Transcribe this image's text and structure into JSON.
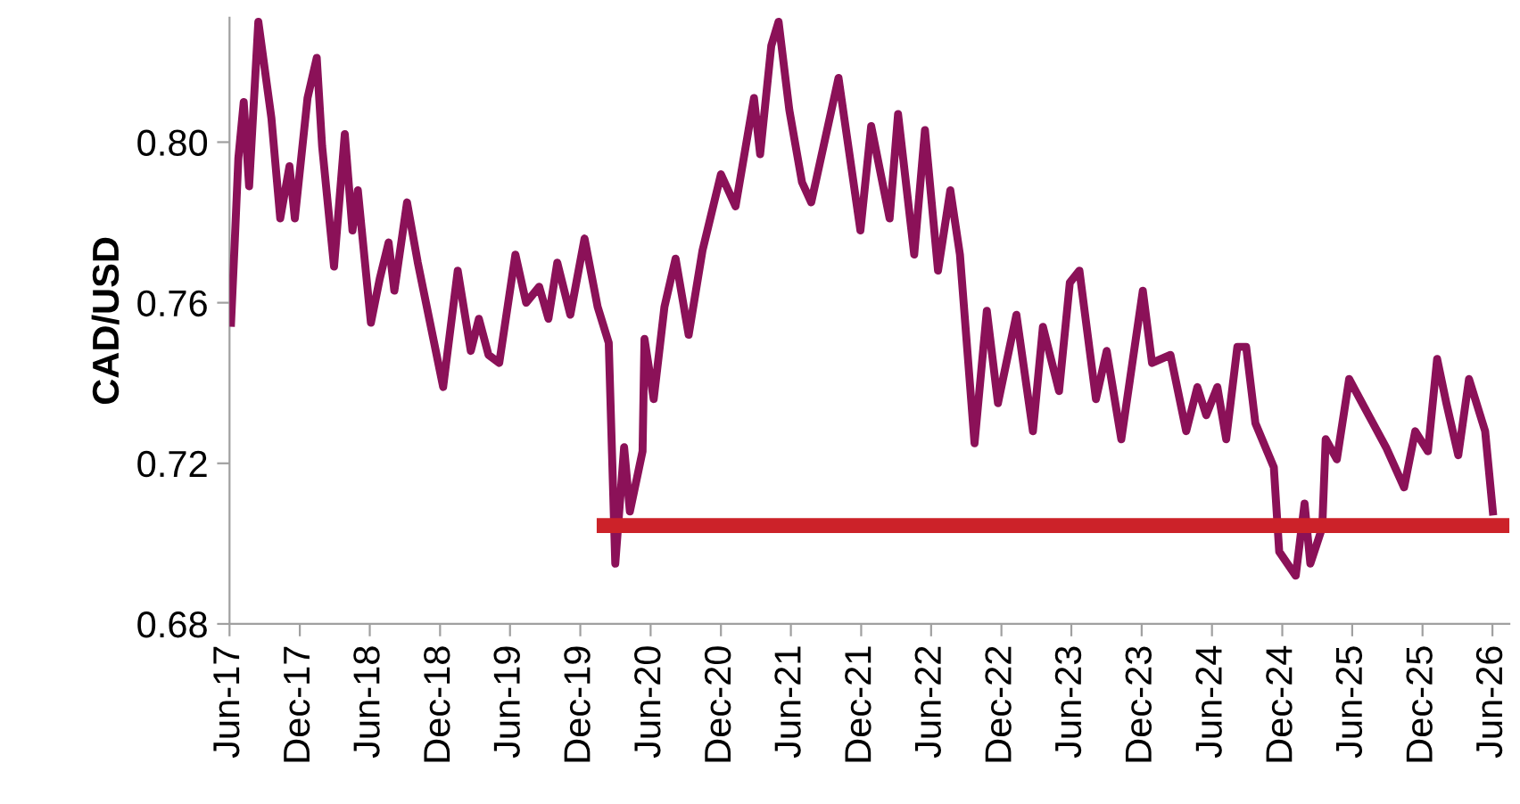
{
  "chart_data": {
    "type": "line",
    "ylabel": "CAD/USD",
    "xlim": [
      "2017-06-01",
      "2026-07-15"
    ],
    "ylim": [
      0.68,
      0.831
    ],
    "yticks": [
      {
        "value": 0.68,
        "label": "0.68"
      },
      {
        "value": 0.72,
        "label": "0.72"
      },
      {
        "value": 0.76,
        "label": "0.76"
      },
      {
        "value": 0.8,
        "label": "0.80"
      }
    ],
    "xticks": [
      {
        "value": "2017-06-01",
        "label": "Jun-17"
      },
      {
        "value": "2017-12-01",
        "label": "Dec-17"
      },
      {
        "value": "2018-06-01",
        "label": "Jun-18"
      },
      {
        "value": "2018-12-01",
        "label": "Dec-18"
      },
      {
        "value": "2019-06-01",
        "label": "Jun-19"
      },
      {
        "value": "2019-12-01",
        "label": "Dec-19"
      },
      {
        "value": "2020-06-01",
        "label": "Jun-20"
      },
      {
        "value": "2020-12-01",
        "label": "Dec-20"
      },
      {
        "value": "2021-06-01",
        "label": "Jun-21"
      },
      {
        "value": "2021-12-01",
        "label": "Dec-21"
      },
      {
        "value": "2022-06-01",
        "label": "Jun-22"
      },
      {
        "value": "2022-12-01",
        "label": "Dec-22"
      },
      {
        "value": "2023-06-01",
        "label": "Jun-23"
      },
      {
        "value": "2023-12-01",
        "label": "Dec-23"
      },
      {
        "value": "2024-06-01",
        "label": "Jun-24"
      },
      {
        "value": "2024-12-01",
        "label": "Dec-24"
      },
      {
        "value": "2025-06-01",
        "label": "Jun-25"
      },
      {
        "value": "2025-12-01",
        "label": "Dec-25"
      },
      {
        "value": "2026-06-01",
        "label": "Jun-26"
      }
    ],
    "grid": false,
    "marker": "none",
    "line_style": "solid",
    "series": [
      {
        "color": "#8b1158",
        "x": [
          "2017-06-05",
          "2017-06-15",
          "2017-06-24",
          "2017-07-08",
          "2017-07-22",
          "2017-08-15",
          "2017-09-18",
          "2017-10-11",
          "2017-11-04",
          "2017-11-18",
          "2017-12-21",
          "2018-01-14",
          "2018-01-28",
          "2018-02-28",
          "2018-03-28",
          "2018-04-17",
          "2018-05-01",
          "2018-06-04",
          "2018-06-27",
          "2018-07-20",
          "2018-08-04",
          "2018-09-06",
          "2018-10-04",
          "2018-12-09",
          "2019-01-16",
          "2019-02-19",
          "2019-03-12",
          "2019-04-06",
          "2019-05-04",
          "2019-06-15",
          "2019-07-13",
          "2019-08-16",
          "2019-09-09",
          "2019-10-02",
          "2019-11-05",
          "2019-12-12",
          "2020-01-15",
          "2020-02-13",
          "2020-03-01",
          "2020-03-24",
          "2020-04-08",
          "2020-05-11",
          "2020-05-16",
          "2020-06-09",
          "2020-07-07",
          "2020-08-05",
          "2020-09-08",
          "2020-10-14",
          "2020-12-01",
          "2021-01-08",
          "2021-02-25",
          "2021-03-13",
          "2021-04-11",
          "2021-04-30",
          "2021-05-28",
          "2021-06-30",
          "2021-07-24",
          "2021-10-03",
          "2021-11-29",
          "2021-12-27",
          "2022-02-13",
          "2022-03-07",
          "2022-04-18",
          "2022-05-16",
          "2022-06-19",
          "2022-07-21",
          "2022-08-15",
          "2022-09-22",
          "2022-10-24",
          "2022-11-22",
          "2023-01-09",
          "2023-02-21",
          "2023-03-19",
          "2023-04-30",
          "2023-05-28",
          "2023-06-22",
          "2023-08-04",
          "2023-09-01",
          "2023-10-09",
          "2023-12-04",
          "2023-12-28",
          "2024-02-14",
          "2024-03-26",
          "2024-04-24",
          "2024-05-17",
          "2024-06-15",
          "2024-07-08",
          "2024-08-06",
          "2024-08-29",
          "2024-09-22",
          "2024-11-09",
          "2024-11-23",
          "2025-01-05",
          "2025-01-28",
          "2025-02-12",
          "2025-03-15",
          "2025-03-24",
          "2025-04-22",
          "2025-05-24",
          "2025-07-25",
          "2025-08-28",
          "2025-10-14",
          "2025-11-12",
          "2025-12-15",
          "2026-01-08",
          "2026-02-01",
          "2026-03-04",
          "2026-04-01",
          "2026-05-13",
          "2026-06-02"
        ],
        "values": [
          0.755,
          0.776,
          0.796,
          0.81,
          0.789,
          0.83,
          0.806,
          0.781,
          0.794,
          0.781,
          0.811,
          0.821,
          0.799,
          0.769,
          0.802,
          0.778,
          0.788,
          0.755,
          0.766,
          0.775,
          0.763,
          0.785,
          0.77,
          0.739,
          0.768,
          0.748,
          0.756,
          0.747,
          0.745,
          0.772,
          0.76,
          0.764,
          0.756,
          0.77,
          0.757,
          0.776,
          0.759,
          0.75,
          0.695,
          0.724,
          0.708,
          0.723,
          0.751,
          0.736,
          0.759,
          0.771,
          0.752,
          0.773,
          0.792,
          0.784,
          0.811,
          0.797,
          0.824,
          0.83,
          0.808,
          0.79,
          0.785,
          0.816,
          0.778,
          0.804,
          0.781,
          0.807,
          0.772,
          0.803,
          0.768,
          0.788,
          0.772,
          0.725,
          0.758,
          0.735,
          0.757,
          0.728,
          0.754,
          0.738,
          0.765,
          0.768,
          0.736,
          0.748,
          0.726,
          0.763,
          0.745,
          0.747,
          0.728,
          0.739,
          0.732,
          0.739,
          0.726,
          0.749,
          0.749,
          0.73,
          0.719,
          0.698,
          0.692,
          0.71,
          0.695,
          0.704,
          0.726,
          0.721,
          0.741,
          0.73,
          0.724,
          0.714,
          0.728,
          0.723,
          0.746,
          0.735,
          0.722,
          0.741,
          0.728,
          0.708
        ]
      },
      {
        "color": "#cc2229",
        "x": [
          "2020-02-01",
          "2026-07-15"
        ],
        "values": [
          0.7045,
          0.7045
        ]
      }
    ]
  }
}
